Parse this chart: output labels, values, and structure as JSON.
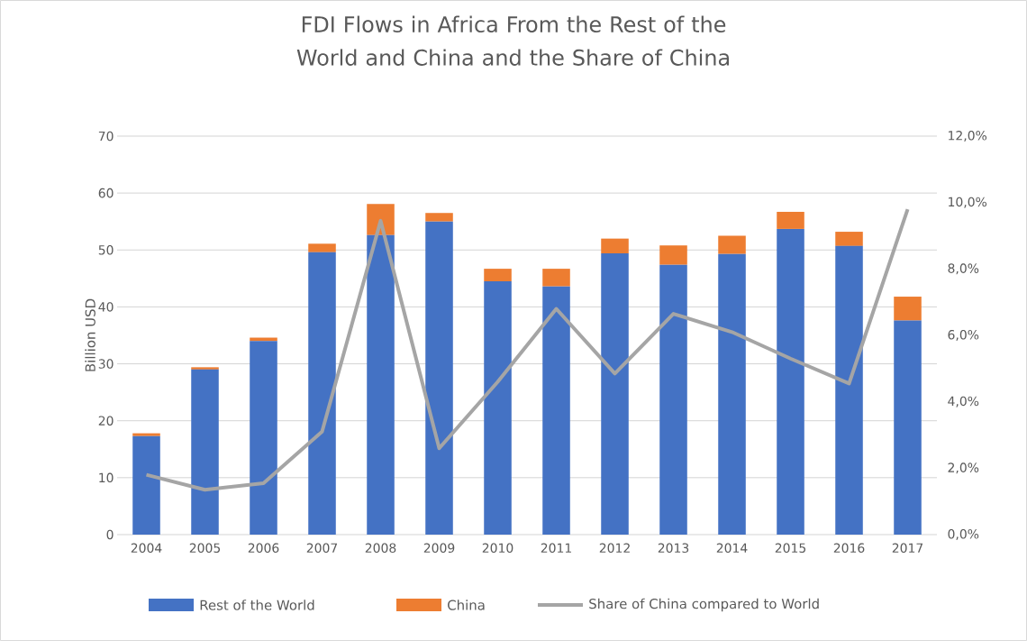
{
  "chart_data": {
    "type": "bar",
    "title": "FDI Flows in Africa From the Rest of the World and China and the Share of China",
    "ylabel": "Billion USD",
    "categories": [
      "2004",
      "2005",
      "2006",
      "2007",
      "2008",
      "2009",
      "2010",
      "2011",
      "2012",
      "2013",
      "2014",
      "2015",
      "2016",
      "2017"
    ],
    "stacked": true,
    "series": [
      {
        "name": "Rest of the World",
        "color": "#4472c4",
        "values": [
          17.3,
          29.0,
          34.0,
          49.6,
          52.6,
          55.0,
          44.5,
          43.6,
          49.4,
          47.4,
          49.3,
          53.7,
          50.7,
          37.6
        ]
      },
      {
        "name": "China",
        "color": "#ed7d31",
        "values": [
          0.5,
          0.4,
          0.6,
          1.5,
          5.5,
          1.5,
          2.2,
          3.1,
          2.6,
          3.4,
          3.2,
          3.0,
          2.5,
          4.2
        ]
      },
      {
        "name": "Share of China compared to World",
        "type": "line",
        "axis": "y2",
        "color": "#a5a5a5",
        "values": [
          1.8,
          1.35,
          1.55,
          3.1,
          9.45,
          2.6,
          4.6,
          6.8,
          4.85,
          6.65,
          6.1,
          5.3,
          4.55,
          9.8
        ]
      }
    ],
    "ylim": [
      0,
      70
    ],
    "yticks": [
      0,
      10,
      20,
      30,
      40,
      50,
      60,
      70
    ],
    "y2lim": [
      0,
      12
    ],
    "y2ticks": [
      {
        "value": 0,
        "label": "0,0%"
      },
      {
        "value": 2,
        "label": "2,0%"
      },
      {
        "value": 4,
        "label": "4,0%"
      },
      {
        "value": 6,
        "label": "6,0%"
      },
      {
        "value": 8,
        "label": "8,0%"
      },
      {
        "value": 10,
        "label": "10,0%"
      },
      {
        "value": 12,
        "label": "12,0%"
      }
    ],
    "grid": "y",
    "legend": "bottom"
  }
}
